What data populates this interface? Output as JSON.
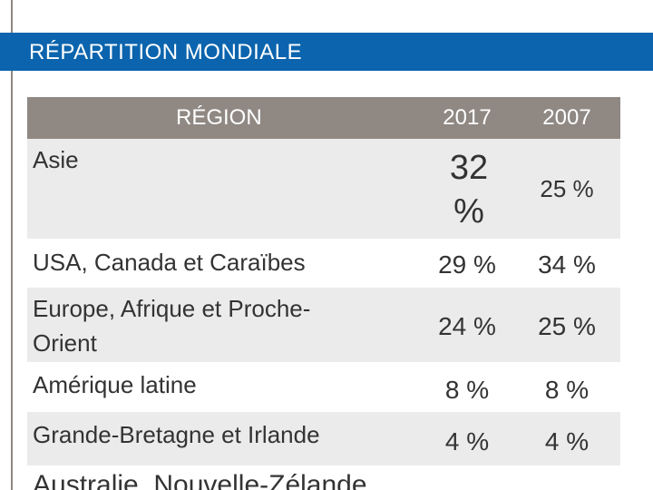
{
  "title": "RÉPARTITION MONDIALE",
  "table": {
    "headers": {
      "region": "RÉGION",
      "y2017": "2017",
      "y2007": "2007"
    },
    "rows": [
      {
        "region": "Asie",
        "y2017": "32 %",
        "y2007": "25 %"
      },
      {
        "region": "USA, Canada et Caraïbes",
        "y2017": "29 %",
        "y2007": "34 %"
      },
      {
        "region_line1": "Europe, Afrique et Proche-",
        "region_line2": "Orient",
        "y2017": "24 %",
        "y2007": "25 %"
      },
      {
        "region": "Amérique latine",
        "y2017": "8 %",
        "y2007": "8 %"
      },
      {
        "region": "Grande-Bretagne et Irlande",
        "y2017": "4 %",
        "y2007": "4 %"
      },
      {
        "region": "Australie, Nouvelle-Zélande"
      }
    ]
  },
  "colors": {
    "title_bar": "#0b64ad",
    "header_bg": "#8f8883",
    "row_shade": "#ebebeb"
  }
}
